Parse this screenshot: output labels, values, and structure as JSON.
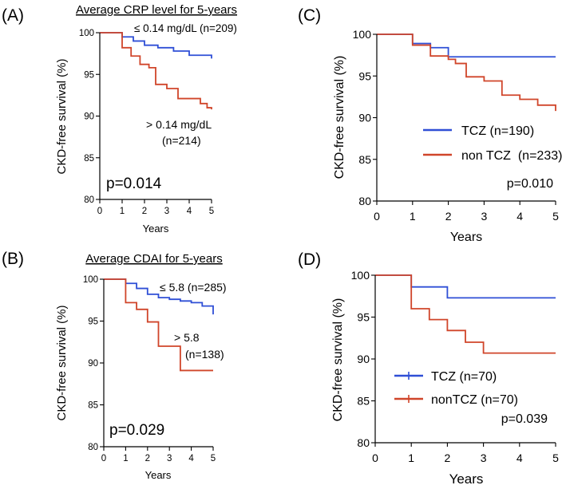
{
  "colors": {
    "blue": "#2f4fd6",
    "red": "#d0452a",
    "axis": "#000000"
  },
  "chart_data": [
    {
      "type": "line",
      "panel": "(A)",
      "title": "Average CRP level for 5-years",
      "xlabel": "Years",
      "ylabel": "CKD-free survival (%)",
      "xlim": [
        0,
        5
      ],
      "ylim": [
        80,
        100
      ],
      "xticks": [
        "0",
        "1",
        "2",
        "3",
        "4",
        "5"
      ],
      "yticks": [
        "80",
        "85",
        "90",
        "95",
        "100"
      ],
      "series": [
        {
          "name": "≤ 0.14 mg/dL (n=209)",
          "color": "#2f4fd6",
          "x": [
            0,
            1,
            1.5,
            2.0,
            2.6,
            3.3,
            4.0,
            5.0
          ],
          "y": [
            100,
            99.5,
            99.0,
            98.5,
            98.2,
            97.8,
            97.3,
            96.9
          ]
        },
        {
          "name": "> 0.14 mg/dL (n=214)",
          "color": "#d0452a",
          "x": [
            0,
            1,
            1.4,
            1.8,
            2.2,
            2.5,
            3.0,
            3.5,
            4.5,
            4.8,
            5.0
          ],
          "y": [
            100,
            98.2,
            97.2,
            96.2,
            95.8,
            93.8,
            93.3,
            92.1,
            91.5,
            91.0,
            90.8
          ]
        }
      ],
      "annotations": {
        "label_low": "≤ 0.14 mg/dL (n=209)",
        "label_high_1": "> 0.14 mg/dL",
        "label_high_2": "(n=214)",
        "pvalue": "p=0.014"
      }
    },
    {
      "type": "line",
      "panel": "(B)",
      "title": "Average CDAI for 5-years",
      "xlabel": "Years",
      "ylabel": "CKD-free survival (%)",
      "xlim": [
        0,
        5
      ],
      "ylim": [
        80,
        100
      ],
      "xticks": [
        "0",
        "1",
        "2",
        "3",
        "4",
        "5"
      ],
      "yticks": [
        "80",
        "85",
        "90",
        "95",
        "100"
      ],
      "series": [
        {
          "name": "≤ 5.8 (n=285)",
          "color": "#2f4fd6",
          "x": [
            0,
            1,
            1.5,
            2.0,
            2.5,
            3.0,
            3.5,
            4.0,
            4.5,
            5.0
          ],
          "y": [
            100,
            99.5,
            98.9,
            98.2,
            97.8,
            97.6,
            97.4,
            97.2,
            96.8,
            95.8
          ]
        },
        {
          "name": "> 5.8 (n=138)",
          "color": "#d0452a",
          "x": [
            0,
            1,
            1.5,
            2.0,
            2.5,
            3.5,
            5.0
          ],
          "y": [
            100,
            97.2,
            96.4,
            94.9,
            92.0,
            89.1,
            89.1
          ]
        }
      ],
      "annotations": {
        "label_low": "≤ 5.8 (n=285)",
        "label_high_1": "> 5.8",
        "label_high_2": "(n=138)",
        "pvalue": "p=0.029"
      }
    },
    {
      "type": "line",
      "panel": "(C)",
      "title": "",
      "xlabel": "Years",
      "ylabel": "CKD-free survival (%)",
      "xlim": [
        0,
        5
      ],
      "ylim": [
        80,
        100
      ],
      "xticks": [
        "0",
        "1",
        "2",
        "3",
        "4",
        "5"
      ],
      "yticks": [
        "80",
        "85",
        "90",
        "95",
        "100"
      ],
      "series": [
        {
          "name": "TCZ (n=190)",
          "color": "#2f4fd6",
          "x": [
            0,
            1,
            1.5,
            2.0,
            5.0
          ],
          "y": [
            100,
            98.9,
            98.4,
            97.3,
            97.3
          ]
        },
        {
          "name": "non TCZ  (n=233)",
          "color": "#d0452a",
          "x": [
            0,
            1,
            1.5,
            2.0,
            2.2,
            2.5,
            3.0,
            3.5,
            4.0,
            4.5,
            5.0
          ],
          "y": [
            100,
            98.7,
            97.4,
            97.0,
            96.5,
            94.9,
            94.4,
            92.7,
            92.2,
            91.5,
            90.8
          ]
        }
      ],
      "legend_position": "middle",
      "annotations": {
        "pvalue": "p=0.010"
      }
    },
    {
      "type": "line",
      "panel": "(D)",
      "title": "",
      "xlabel": "Years",
      "ylabel": "CKD-free survival (%)",
      "xlim": [
        0,
        5
      ],
      "ylim": [
        80,
        100
      ],
      "xticks": [
        "0",
        "1",
        "2",
        "3",
        "4",
        "5"
      ],
      "yticks": [
        "80",
        "85",
        "90",
        "95",
        "100"
      ],
      "series": [
        {
          "name": "TCZ (n=70)",
          "color": "#2f4fd6",
          "x": [
            0,
            1,
            2.0,
            5.0
          ],
          "y": [
            100,
            98.6,
            97.3,
            97.3
          ]
        },
        {
          "name": "nonTCZ (n=70)",
          "color": "#d0452a",
          "x": [
            0,
            1,
            1.5,
            2.0,
            2.5,
            3.0,
            5.0
          ],
          "y": [
            100,
            96.0,
            94.7,
            93.4,
            92.0,
            90.7,
            90.7
          ]
        }
      ],
      "legend_position": "lower-left",
      "annotations": {
        "pvalue": "p=0.039"
      }
    }
  ]
}
